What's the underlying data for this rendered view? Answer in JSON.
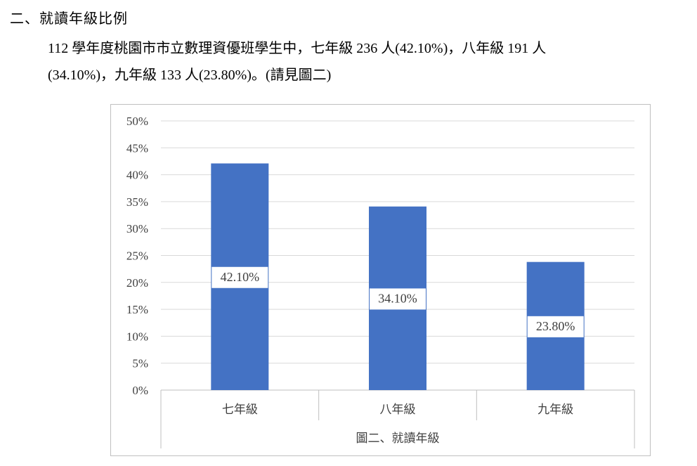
{
  "section": {
    "heading": "二、就讀年級比例",
    "paragraph_line1": "112 學年度桃園市市立數理資優班學生中，七年級 236 人(42.10%)，八年級 191 人",
    "paragraph_line2": "(34.10%)，九年級 133 人(23.80%)。(請見圖二)"
  },
  "colors": {
    "bar": "#4472C4",
    "grid": "#d9d9d9",
    "axis": "#bfbfbf"
  },
  "chart_data": {
    "type": "bar",
    "categories": [
      "七年級",
      "八年級",
      "九年級"
    ],
    "values": [
      42.1,
      34.1,
      23.8
    ],
    "data_labels": [
      "42.10%",
      "34.10%",
      "23.80%"
    ],
    "ylim": [
      0,
      50
    ],
    "yticks": [
      "0%",
      "5%",
      "10%",
      "15%",
      "20%",
      "25%",
      "30%",
      "35%",
      "40%",
      "45%",
      "50%"
    ],
    "xlabel": "圖二、就讀年級",
    "grid": true
  }
}
